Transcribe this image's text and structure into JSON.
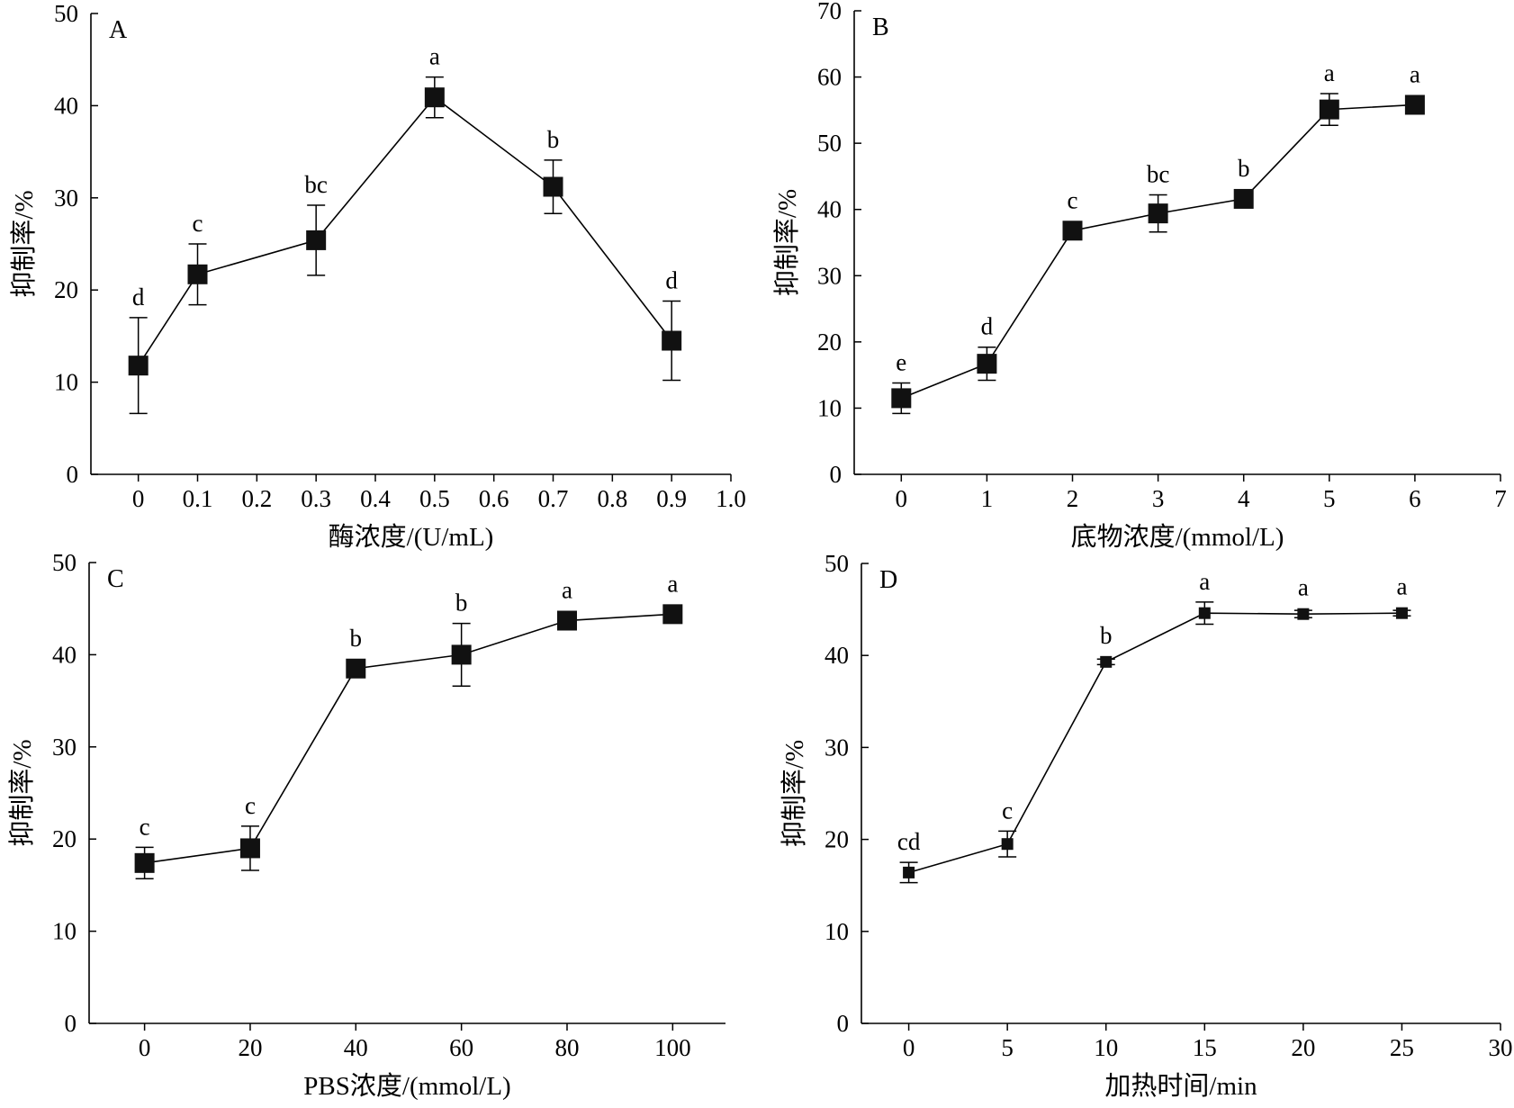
{
  "chart_data": [
    {
      "panel": "A",
      "type": "line",
      "xlabel": "酶浓度/(U/mL)",
      "ylabel": "抑制率/%",
      "xlim": [
        -0.08,
        1.0
      ],
      "ylim": [
        0,
        50
      ],
      "xticks": [
        0,
        0.1,
        0.2,
        0.3,
        0.4,
        0.5,
        0.6,
        0.7,
        0.8,
        0.9,
        1.0
      ],
      "xtick_labels": [
        "0",
        "0.1",
        "0.2",
        "0.3",
        "0.4",
        "0.5",
        "0.6",
        "0.7",
        "0.8",
        "0.9",
        "1.0"
      ],
      "yticks": [
        0,
        10,
        20,
        30,
        40,
        50
      ],
      "ytick_labels": [
        "0",
        "10",
        "20",
        "30",
        "40",
        "50"
      ],
      "marker_size": "large",
      "points": [
        {
          "x": 0,
          "y": 11.8,
          "err": 5.2,
          "label": "d"
        },
        {
          "x": 0.1,
          "y": 21.7,
          "err": 3.3,
          "label": "c"
        },
        {
          "x": 0.3,
          "y": 25.4,
          "err": 3.8,
          "label": "bc"
        },
        {
          "x": 0.5,
          "y": 40.9,
          "err": 2.2,
          "label": "a"
        },
        {
          "x": 0.7,
          "y": 31.2,
          "err": 2.9,
          "label": "b"
        },
        {
          "x": 0.9,
          "y": 14.5,
          "err": 4.3,
          "label": "d"
        }
      ]
    },
    {
      "panel": "B",
      "type": "line",
      "xlabel": "底物浓度/(mmol/L)",
      "ylabel": "抑制率/%",
      "xlim": [
        -0.55,
        7
      ],
      "ylim": [
        0,
        70
      ],
      "xticks": [
        0,
        1,
        2,
        3,
        4,
        5,
        6,
        7
      ],
      "xtick_labels": [
        "0",
        "1",
        "2",
        "3",
        "4",
        "5",
        "6",
        "7"
      ],
      "yticks": [
        0,
        10,
        20,
        30,
        40,
        50,
        60,
        70
      ],
      "ytick_labels": [
        "0",
        "10",
        "20",
        "30",
        "40",
        "50",
        "60",
        "70"
      ],
      "marker_size": "large",
      "points": [
        {
          "x": 0,
          "y": 11.5,
          "err": 2.3,
          "label": "e"
        },
        {
          "x": 1,
          "y": 16.7,
          "err": 2.5,
          "label": "d"
        },
        {
          "x": 2,
          "y": 36.8,
          "err": 0.8,
          "label": "c"
        },
        {
          "x": 3,
          "y": 39.4,
          "err": 2.8,
          "label": "bc"
        },
        {
          "x": 4,
          "y": 41.6,
          "err": 0.6,
          "label": "b"
        },
        {
          "x": 5,
          "y": 55.1,
          "err": 2.4,
          "label": "a"
        },
        {
          "x": 6,
          "y": 55.8,
          "err": 0.6,
          "label": "a"
        }
      ]
    },
    {
      "panel": "C",
      "type": "line",
      "xlabel": "PBS浓度/(mmol/L)",
      "ylabel": "抑制率/%",
      "xlim": [
        -10.5,
        110
      ],
      "ylim": [
        0,
        50
      ],
      "xticks": [
        0,
        20,
        40,
        60,
        80,
        100
      ],
      "xtick_labels": [
        "0",
        "20",
        "40",
        "60",
        "80",
        "100"
      ],
      "yticks": [
        0,
        10,
        20,
        30,
        40,
        50
      ],
      "ytick_labels": [
        "0",
        "10",
        "20",
        "30",
        "40",
        "50"
      ],
      "marker_size": "large",
      "points": [
        {
          "x": 0,
          "y": 17.4,
          "err": 1.7,
          "label": "c"
        },
        {
          "x": 20,
          "y": 19.0,
          "err": 2.4,
          "label": "c"
        },
        {
          "x": 40,
          "y": 38.5,
          "err": 0.6,
          "label": "b"
        },
        {
          "x": 60,
          "y": 40.0,
          "err": 3.4,
          "label": "b"
        },
        {
          "x": 80,
          "y": 43.7,
          "err": 0.5,
          "label": "a"
        },
        {
          "x": 100,
          "y": 44.4,
          "err": 0.6,
          "label": "a"
        }
      ]
    },
    {
      "panel": "D",
      "type": "line",
      "xlabel": "加热时间/min",
      "ylabel": "抑制率/%",
      "xlim": [
        -2.4,
        30
      ],
      "ylim": [
        0,
        50
      ],
      "xticks": [
        0,
        5,
        10,
        15,
        20,
        25,
        30
      ],
      "xtick_labels": [
        "0",
        "5",
        "10",
        "15",
        "20",
        "25",
        "30"
      ],
      "yticks": [
        0,
        10,
        20,
        30,
        40,
        50
      ],
      "ytick_labels": [
        "0",
        "10",
        "20",
        "30",
        "40",
        "50"
      ],
      "marker_size": "small",
      "points": [
        {
          "x": 0,
          "y": 16.4,
          "err": 1.1,
          "label": "cd"
        },
        {
          "x": 5,
          "y": 19.5,
          "err": 1.4,
          "label": "c"
        },
        {
          "x": 10,
          "y": 39.3,
          "err": 0.3,
          "label": "b"
        },
        {
          "x": 15,
          "y": 44.6,
          "err": 1.2,
          "label": "a"
        },
        {
          "x": 20,
          "y": 44.5,
          "err": 0.4,
          "label": "a"
        },
        {
          "x": 25,
          "y": 44.6,
          "err": 0.3,
          "label": "a"
        }
      ]
    }
  ]
}
